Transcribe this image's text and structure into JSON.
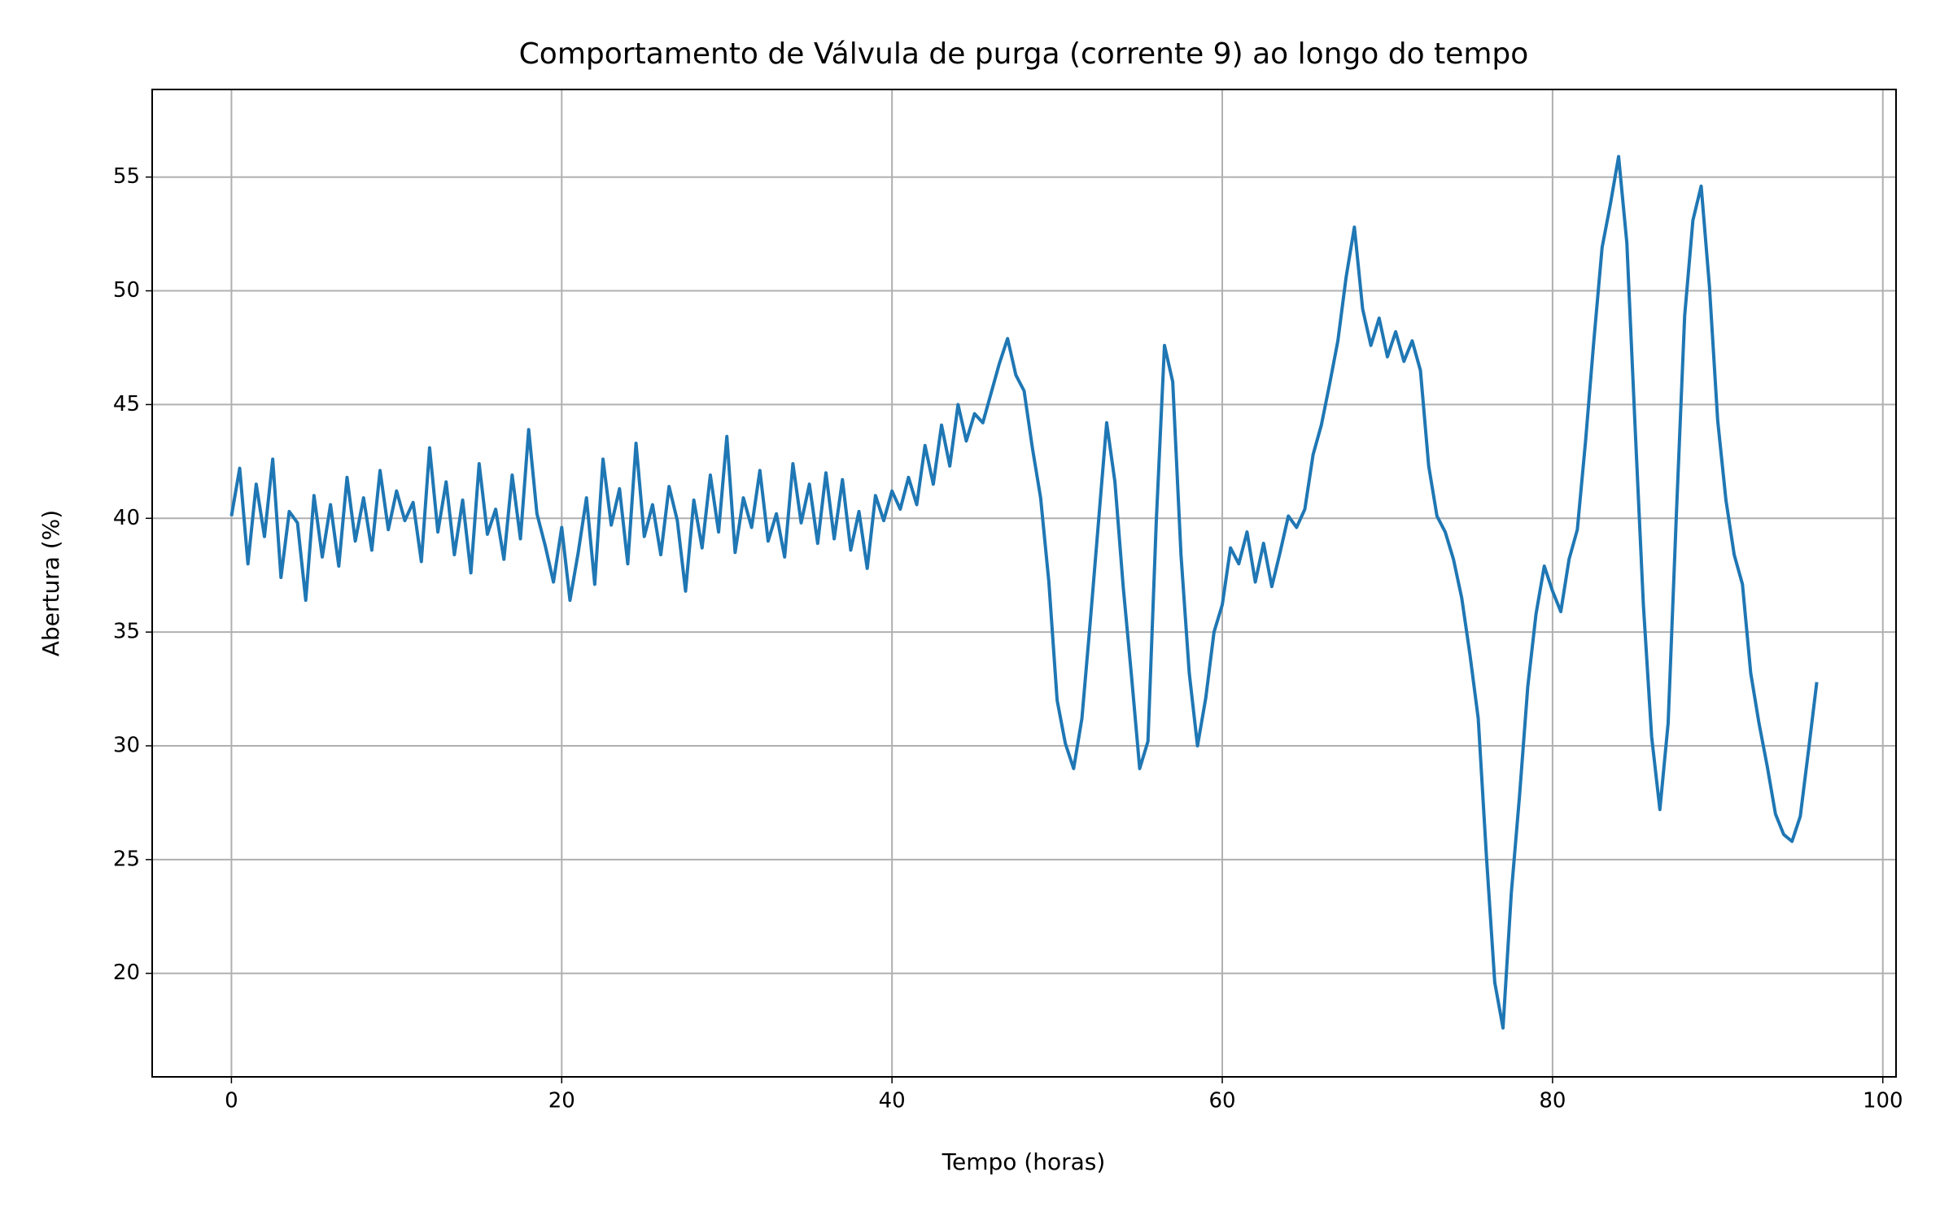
{
  "chart_data": {
    "type": "line",
    "title": "Comportamento de Válvula de purga (corrente 9) ao longo do tempo",
    "x_label": "Tempo (horas)",
    "y_label": "Abertura (%)",
    "color": "#1f77b4",
    "grid": true,
    "xlim": [
      -4.8,
      100.8
    ],
    "ylim": [
      15.45,
      58.85
    ],
    "xticks": [
      0,
      20,
      40,
      60,
      80,
      100
    ],
    "yticks": [
      20,
      25,
      30,
      35,
      40,
      45,
      50,
      55
    ],
    "x": [
      0,
      0.5,
      1,
      1.5,
      2,
      2.5,
      3,
      3.5,
      4,
      4.5,
      5,
      5.5,
      6,
      6.5,
      7,
      7.5,
      8,
      8.5,
      9,
      9.5,
      10,
      10.5,
      11,
      11.5,
      12,
      12.5,
      13,
      13.5,
      14,
      14.5,
      15,
      15.5,
      16,
      16.5,
      17,
      17.5,
      18,
      18.5,
      19,
      19.5,
      20,
      20.5,
      21,
      21.5,
      22,
      22.5,
      23,
      23.5,
      24,
      24.5,
      25,
      25.5,
      26,
      26.5,
      27,
      27.5,
      28,
      28.5,
      29,
      29.5,
      30,
      30.5,
      31,
      31.5,
      32,
      32.5,
      33,
      33.5,
      34,
      34.5,
      35,
      35.5,
      36,
      36.5,
      37,
      37.5,
      38,
      38.5,
      39,
      39.5,
      40,
      40.5,
      41,
      41.5,
      42,
      42.5,
      43,
      43.5,
      44,
      44.5,
      45,
      45.5,
      46,
      46.5,
      47,
      47.5,
      48,
      48.5,
      49,
      49.5,
      50,
      50.5,
      51,
      51.5,
      52,
      52.5,
      53,
      53.5,
      54,
      54.5,
      55,
      55.5,
      56,
      56.5,
      57,
      57.5,
      58,
      58.5,
      59,
      59.5,
      60,
      60.5,
      61,
      61.5,
      62,
      62.5,
      63,
      63.5,
      64,
      64.5,
      65,
      65.5,
      66,
      66.5,
      67,
      67.5,
      68,
      68.5,
      69,
      69.5,
      70,
      70.5,
      71,
      71.5,
      72,
      72.5,
      73,
      73.5,
      74,
      74.5,
      75,
      75.5,
      76,
      76.5,
      77,
      77.5,
      78,
      78.5,
      79,
      79.5,
      80,
      80.5,
      81,
      81.5,
      82,
      82.5,
      83,
      83.5,
      84,
      84.5,
      85,
      85.5,
      86,
      86.5,
      87,
      87.5,
      88,
      88.5,
      89,
      89.5,
      90,
      90.5,
      91,
      91.5,
      92,
      92.5,
      93,
      93.5,
      94,
      94.5,
      95,
      95.5,
      96
    ],
    "values": [
      40.1,
      42.2,
      38.0,
      41.5,
      39.2,
      42.6,
      37.4,
      40.3,
      39.8,
      36.4,
      41.0,
      38.3,
      40.6,
      37.9,
      41.8,
      39.0,
      40.9,
      38.6,
      42.1,
      39.5,
      41.2,
      39.9,
      40.7,
      38.1,
      43.1,
      39.4,
      41.6,
      38.4,
      40.8,
      37.6,
      42.4,
      39.3,
      40.4,
      38.2,
      41.9,
      39.1,
      43.9,
      40.2,
      38.8,
      37.2,
      39.6,
      36.4,
      38.5,
      40.9,
      37.1,
      42.6,
      39.7,
      41.3,
      38.0,
      43.3,
      39.2,
      40.6,
      38.4,
      41.4,
      39.9,
      36.8,
      40.8,
      38.7,
      41.9,
      39.4,
      43.6,
      38.5,
      40.9,
      39.6,
      42.1,
      39.0,
      40.2,
      38.3,
      42.4,
      39.8,
      41.5,
      38.9,
      42.0,
      39.1,
      41.7,
      38.6,
      40.3,
      37.8,
      41.0,
      39.9,
      41.2,
      40.4,
      41.8,
      40.6,
      43.2,
      41.5,
      44.1,
      42.3,
      45.0,
      43.4,
      44.6,
      44.2,
      45.5,
      46.8,
      47.9,
      46.3,
      45.6,
      43.1,
      40.9,
      37.2,
      32.0,
      30.1,
      29.0,
      31.2,
      35.4,
      39.8,
      44.2,
      41.6,
      37.0,
      33.1,
      29.0,
      30.2,
      39.8,
      47.6,
      46.0,
      38.4,
      33.2,
      30.0,
      32.1,
      35.0,
      36.2,
      38.7,
      38.0,
      39.4,
      37.2,
      38.9,
      37.0,
      38.5,
      40.1,
      39.6,
      40.4,
      42.8,
      44.1,
      45.9,
      47.8,
      50.6,
      52.8,
      49.2,
      47.6,
      48.8,
      47.1,
      48.2,
      46.9,
      47.8,
      46.5,
      42.3,
      40.1,
      39.4,
      38.2,
      36.5,
      34.0,
      31.2,
      25.1,
      19.6,
      17.6,
      23.5,
      27.8,
      32.6,
      35.8,
      37.9,
      36.8,
      35.9,
      38.2,
      39.5,
      43.4,
      47.8,
      51.9,
      53.8,
      55.9,
      52.1,
      44.0,
      36.2,
      30.4,
      27.2,
      31.0,
      40.2,
      48.9,
      53.1,
      54.6,
      50.2,
      44.3,
      40.8,
      38.4,
      37.1,
      33.2,
      31.0,
      29.1,
      27.0,
      26.1,
      25.8,
      26.9,
      29.8,
      32.8
    ]
  }
}
